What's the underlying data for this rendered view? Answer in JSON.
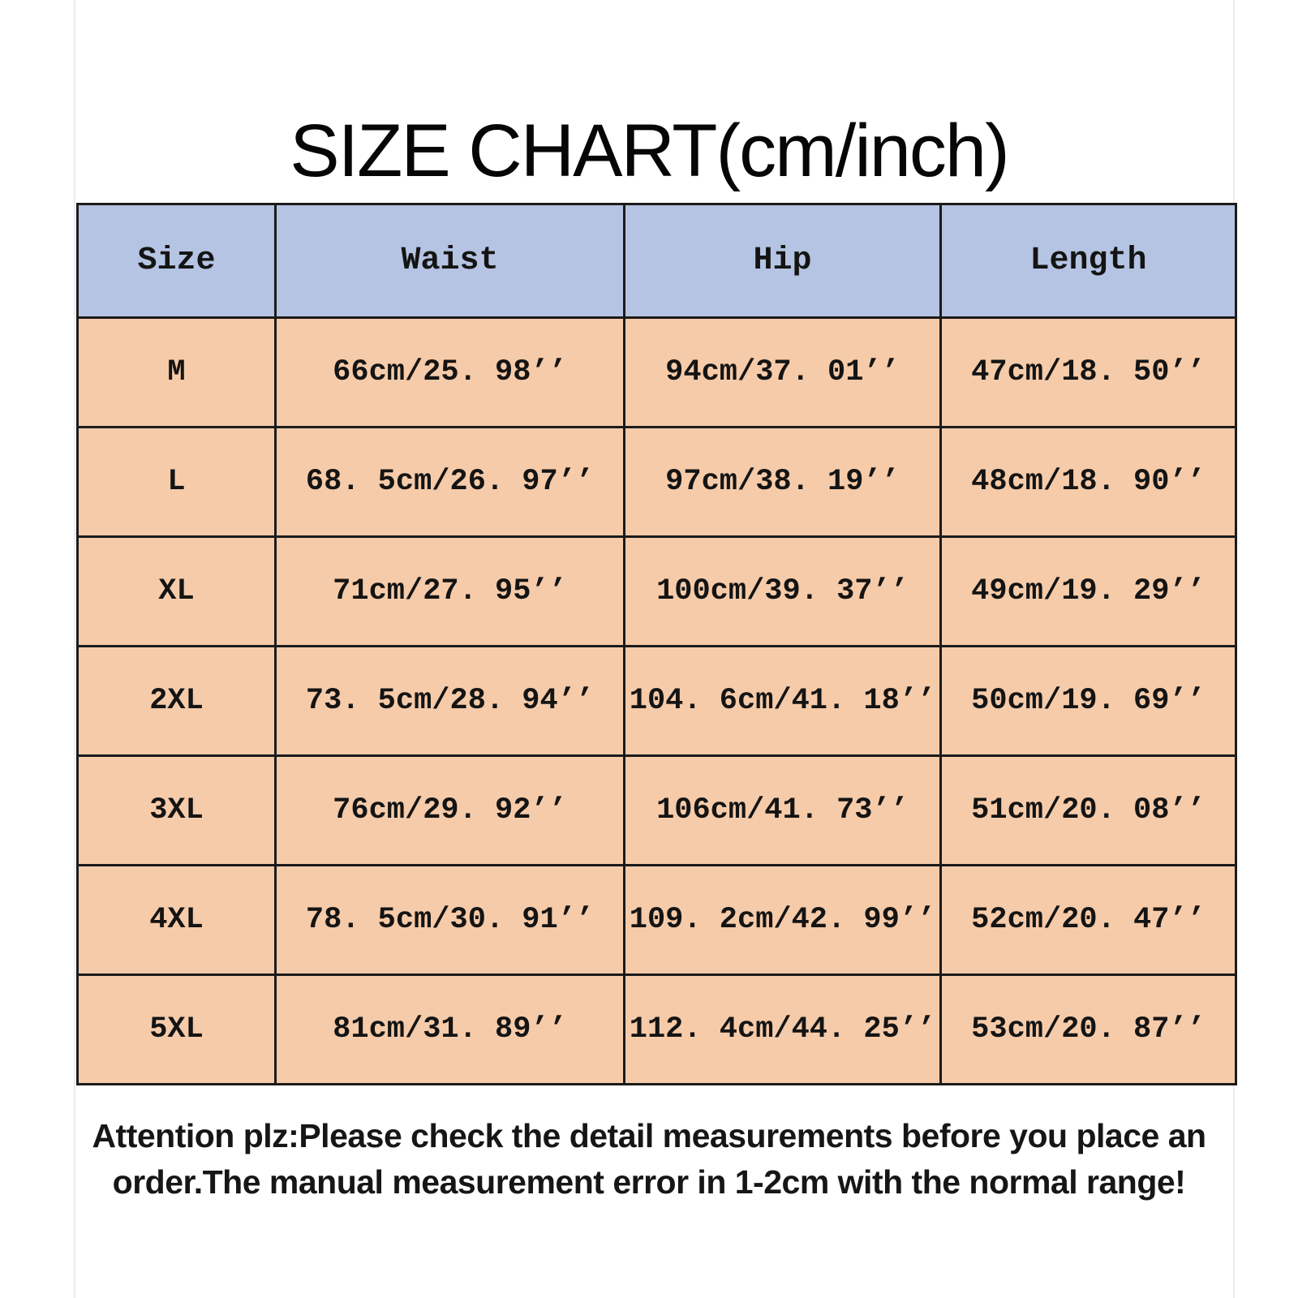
{
  "page": {
    "title": "SIZE CHART(cm/inch)"
  },
  "chart_data": {
    "type": "table",
    "title": "SIZE CHART(cm/inch)",
    "columns": [
      "Size",
      "Waist",
      "Hip",
      "Length"
    ],
    "rows": [
      [
        "M",
        "66cm/25. 98’’",
        "94cm/37. 01’’",
        "47cm/18. 50’’"
      ],
      [
        "L",
        "68. 5cm/26. 97’’",
        "97cm/38. 19’’",
        "48cm/18. 90’’"
      ],
      [
        "XL",
        "71cm/27. 95’’",
        "100cm/39. 37’’",
        "49cm/19. 29’’"
      ],
      [
        "2XL",
        "73. 5cm/28. 94’’",
        "104. 6cm/41. 18’’",
        "50cm/19. 69’’"
      ],
      [
        "3XL",
        "76cm/29. 92’’",
        "106cm/41. 73’’",
        "51cm/20. 08’’"
      ],
      [
        "4XL",
        "78. 5cm/30. 91’’",
        "109. 2cm/42. 99’’",
        "52cm/20. 47’’"
      ],
      [
        "5XL",
        "81cm/31. 89’’",
        "112. 4cm/44. 25’’",
        "53cm/20. 87’’"
      ]
    ],
    "units_note": "cm/inch",
    "layout": {
      "header_bg": "#b5c4e3",
      "row_bg": "#f6cba9",
      "grid_color": "#1b1b1b",
      "grid_on": true
    }
  },
  "note": {
    "line1": "Attention plz:Please check the detail measurements before you place an",
    "line2": "order.The manual measurement error in 1-2cm with the normal range!"
  },
  "colors": {
    "background": "#ffffff",
    "header_bg": "#b5c4e3",
    "row_bg": "#f6cba9",
    "grid": "#1b1b1b",
    "text": "#141414",
    "page_edge_line": "#ebedf3"
  }
}
